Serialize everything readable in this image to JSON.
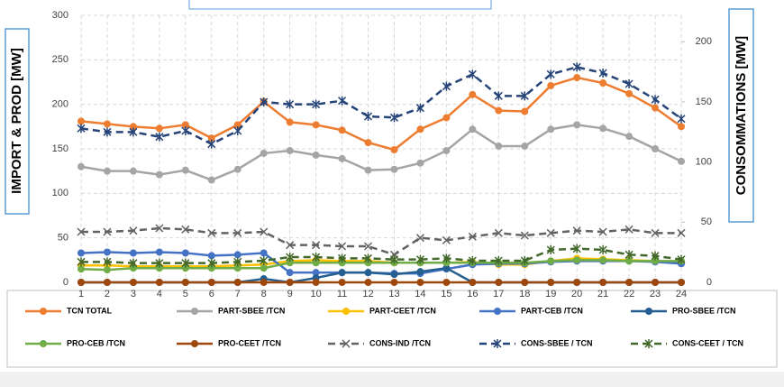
{
  "chart_data": {
    "type": "line",
    "y_label": "IMPORT & PROD [MW]",
    "y2_label": "CONSOMMATIONS [MW]",
    "x": [
      1,
      2,
      3,
      4,
      5,
      6,
      7,
      8,
      9,
      10,
      11,
      12,
      13,
      14,
      15,
      16,
      17,
      18,
      19,
      20,
      21,
      22,
      23,
      24
    ],
    "xlim": [
      1,
      24
    ],
    "xticks": [
      1,
      2,
      3,
      4,
      5,
      6,
      7,
      8,
      9,
      10,
      11,
      12,
      13,
      14,
      15,
      16,
      17,
      18,
      19,
      20,
      21,
      22,
      23,
      24
    ],
    "ylim": [
      0,
      300
    ],
    "yticks": [
      0,
      50,
      100,
      150,
      200,
      250,
      300
    ],
    "y2lim": [
      0,
      222
    ],
    "y2ticks": [
      0,
      50,
      100,
      150,
      200
    ],
    "grid": true,
    "series": [
      {
        "name": "TCN TOTAL",
        "color": "#ED7D31",
        "marker": "circle",
        "dashed": false,
        "values": [
          181,
          178,
          175,
          173,
          177,
          162,
          177,
          203,
          180,
          177,
          171,
          157,
          149,
          172,
          185,
          211,
          193,
          192,
          221,
          230,
          224,
          212,
          196,
          175
        ]
      },
      {
        "name": "PART-SBEE /TCN",
        "color": "#A5A5A5",
        "marker": "circle",
        "dashed": false,
        "values": [
          130,
          125,
          125,
          121,
          126,
          115,
          127,
          145,
          148,
          143,
          139,
          126,
          127,
          134,
          148,
          172,
          153,
          153,
          172,
          177,
          173,
          164,
          150,
          136
        ]
      },
      {
        "name": "PART-CEET /TCN",
        "color": "#FFC000",
        "marker": "circle",
        "dashed": false,
        "values": [
          19,
          19,
          18,
          18,
          18,
          18,
          19,
          20,
          24,
          25,
          24,
          24,
          22,
          22,
          22,
          23,
          20,
          20,
          24,
          27,
          26,
          25,
          24,
          22
        ]
      },
      {
        "name": "PART-CEB /TCN",
        "color": "#4472C4",
        "marker": "circle",
        "dashed": false,
        "values": [
          33,
          34,
          33,
          34,
          33,
          30,
          31,
          33,
          11,
          11,
          11,
          11,
          10,
          10,
          15,
          20,
          21,
          21,
          23,
          24,
          24,
          24,
          23,
          21
        ]
      },
      {
        "name": "PRO-SBEE /TCN",
        "color": "#255E91",
        "marker": "circle",
        "dashed": false,
        "values": [
          0,
          0,
          0,
          0,
          0,
          0,
          0,
          4,
          0,
          5,
          11,
          11,
          9,
          12,
          16,
          0,
          0,
          0,
          0,
          0,
          0,
          0,
          0,
          0
        ]
      },
      {
        "name": "PRO-CEB /TCN",
        "color": "#70AD47",
        "marker": "circle",
        "dashed": false,
        "values": [
          15,
          14,
          16,
          16,
          16,
          16,
          16,
          16,
          22,
          22,
          22,
          22,
          22,
          22,
          22,
          22,
          22,
          22,
          24,
          25,
          25,
          24,
          24,
          24
        ]
      },
      {
        "name": "PRO-CEET /TCN",
        "color": "#9E480E",
        "marker": "circle",
        "dashed": false,
        "values": [
          0,
          0,
          0,
          0,
          0,
          0,
          0,
          0,
          0,
          0,
          0,
          0,
          0,
          0,
          0,
          0,
          0,
          0,
          0,
          0,
          0,
          0,
          0,
          0
        ]
      },
      {
        "name": "CONS-IND /TCN",
        "color": "#636363",
        "marker": "x",
        "dashed": true,
        "axis": "y2",
        "values": [
          42,
          42,
          43,
          45,
          44,
          41,
          41,
          42,
          31,
          31,
          30,
          30,
          23,
          37,
          35,
          38,
          41,
          39,
          41,
          43,
          42,
          44,
          41,
          41
        ]
      },
      {
        "name": "CONS-SBEE / TCN",
        "color": "#264478",
        "marker": "star",
        "dashed": true,
        "axis": "y2",
        "values": [
          128,
          125,
          125,
          121,
          126,
          115,
          126,
          150,
          148,
          148,
          151,
          138,
          137,
          145,
          163,
          173,
          155,
          155,
          173,
          179,
          174,
          165,
          152,
          136
        ]
      },
      {
        "name": "CONS-CEET / TCN",
        "color": "#43682B",
        "marker": "star",
        "dashed": true,
        "axis": "y2",
        "values": [
          17,
          17,
          16,
          16,
          16,
          16,
          17,
          18,
          21,
          21,
          20,
          20,
          19,
          19,
          20,
          18,
          18,
          18,
          27,
          28,
          27,
          23,
          22,
          19
        ]
      }
    ]
  }
}
